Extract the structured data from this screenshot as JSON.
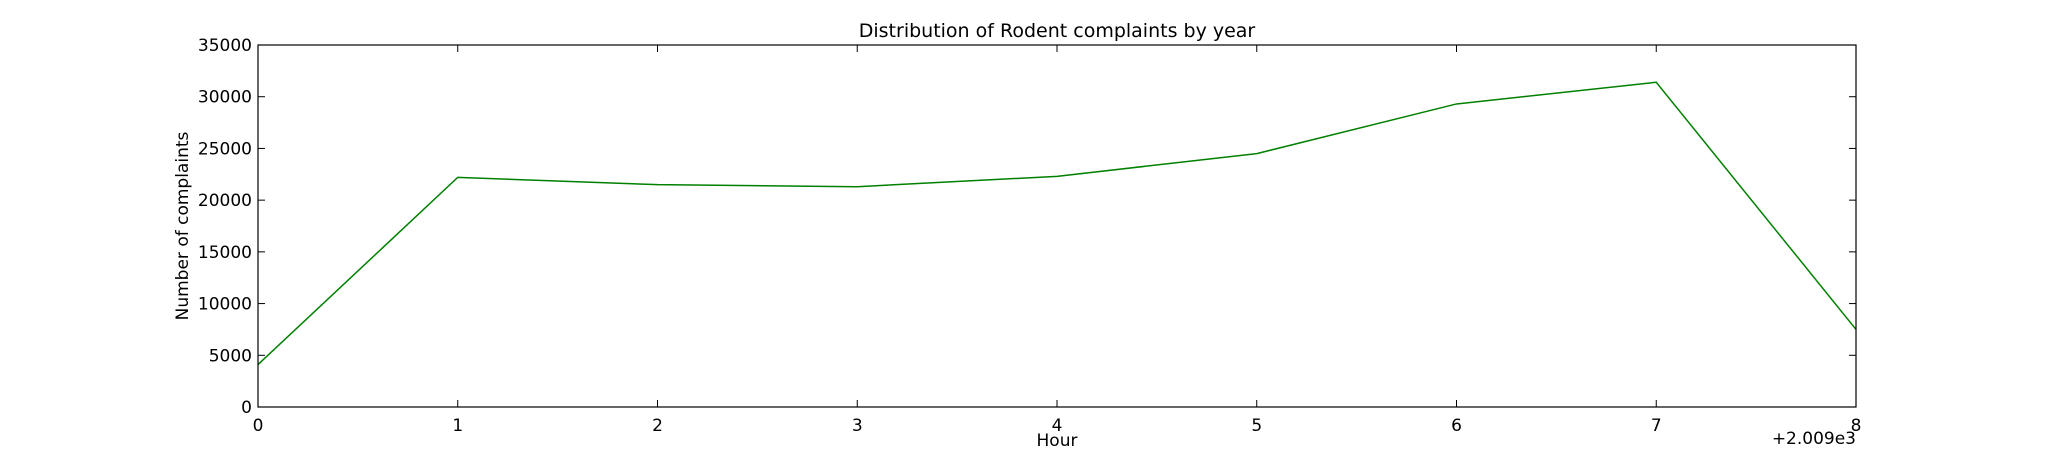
{
  "chart_data": {
    "type": "line",
    "title": "Distribution of  Rodent complaints by year",
    "xlabel": "Hour",
    "ylabel": "Number of complaints",
    "x_offset_label": "+2.009e3",
    "xlim": [
      0,
      8
    ],
    "ylim": [
      0,
      35000
    ],
    "xticks": [
      0,
      1,
      2,
      3,
      4,
      5,
      6,
      7,
      8
    ],
    "yticks": [
      0,
      5000,
      10000,
      15000,
      20000,
      25000,
      30000,
      35000
    ],
    "grid": false,
    "series": [
      {
        "color": "#008000",
        "x": [
          0,
          1,
          2,
          3,
          4,
          5,
          6,
          7,
          8
        ],
        "y": [
          4100,
          22200,
          21500,
          21300,
          22300,
          24500,
          29300,
          31400,
          7500
        ]
      }
    ]
  }
}
